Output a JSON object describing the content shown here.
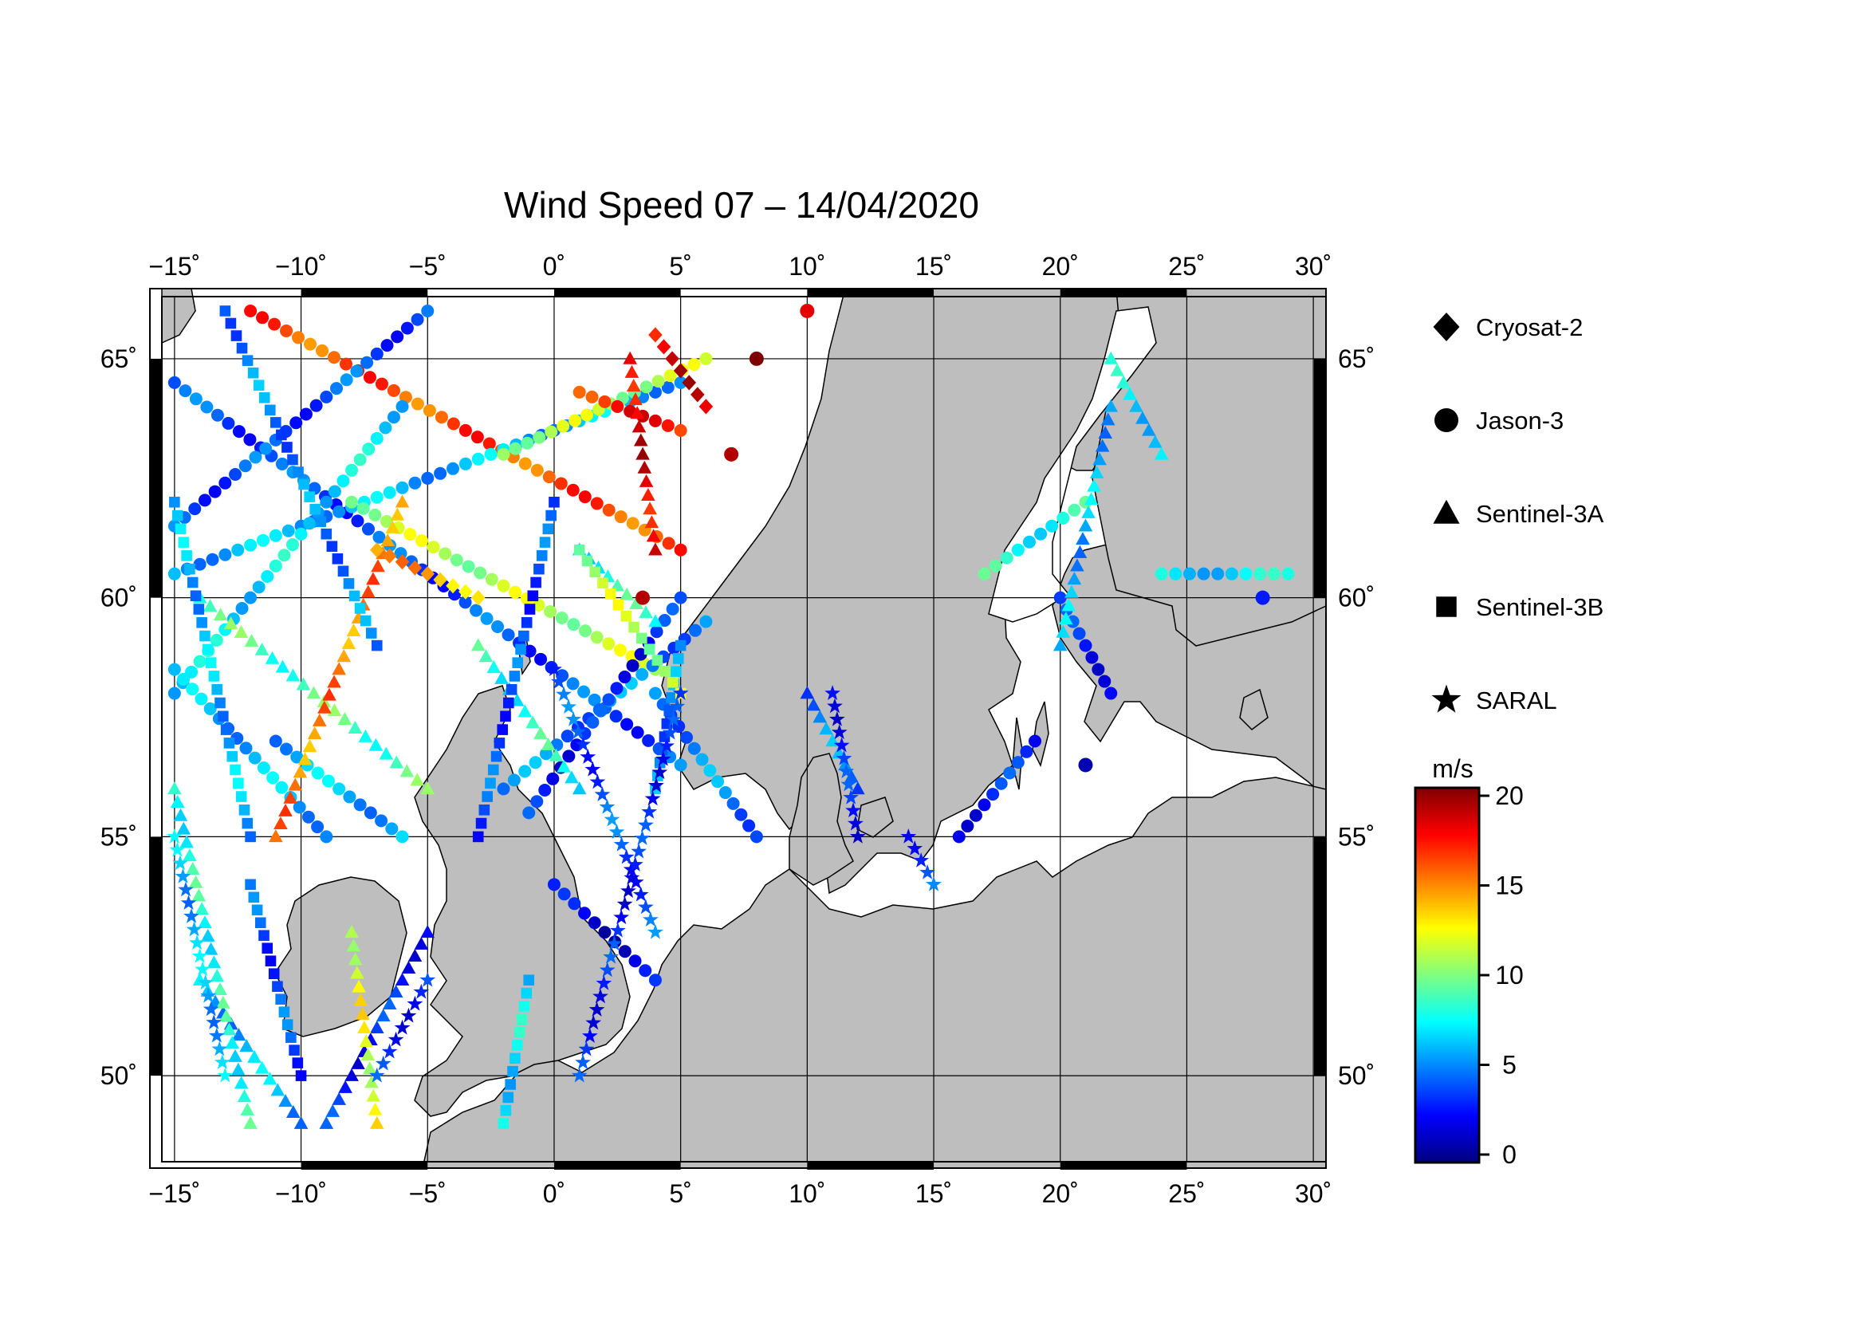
{
  "title": "Wind Speed 07 – 14/04/2020",
  "map": {
    "lon_range": [
      -15.5,
      30.5
    ],
    "lat_range": [
      48.2,
      66.3
    ],
    "lon_ticks": [
      {
        "value": -15,
        "label": "−15˚"
      },
      {
        "value": -10,
        "label": "−10˚"
      },
      {
        "value": -5,
        "label": "−5˚"
      },
      {
        "value": 0,
        "label": "0˚"
      },
      {
        "value": 5,
        "label": "5˚"
      },
      {
        "value": 10,
        "label": "10˚"
      },
      {
        "value": 15,
        "label": "15˚"
      },
      {
        "value": 20,
        "label": "20˚"
      },
      {
        "value": 25,
        "label": "25˚"
      },
      {
        "value": 30,
        "label": "30˚"
      }
    ],
    "lat_ticks": [
      {
        "value": 50,
        "label": "50˚"
      },
      {
        "value": 55,
        "label": "55˚"
      },
      {
        "value": 60,
        "label": "60˚"
      },
      {
        "value": 65,
        "label": "65˚"
      }
    ],
    "grid": true,
    "land_color": "#bebebe",
    "sea_color": "#ffffff"
  },
  "legend": {
    "items": [
      {
        "name": "Cryosat-2",
        "marker": "diamond"
      },
      {
        "name": "Jason-3",
        "marker": "circle"
      },
      {
        "name": "Sentinel-3A",
        "marker": "triangle"
      },
      {
        "name": "Sentinel-3B",
        "marker": "square"
      },
      {
        "name": "SARAL",
        "marker": "star"
      }
    ]
  },
  "colorbar": {
    "unit": "m/s",
    "min": 0,
    "max": 20,
    "ticks": [
      {
        "value": 0,
        "label": "0"
      },
      {
        "value": 5,
        "label": "5"
      },
      {
        "value": 10,
        "label": "10"
      },
      {
        "value": 15,
        "label": "15"
      },
      {
        "value": 20,
        "label": "20"
      }
    ],
    "colormap": [
      "#00007f",
      "#0000ff",
      "#007fff",
      "#00ffff",
      "#7fff7f",
      "#ffff00",
      "#ff7f00",
      "#ff0000",
      "#7f0000"
    ]
  },
  "chart_data": {
    "type": "scatter",
    "x_unit": "longitude (deg)",
    "y_unit": "latitude (deg)",
    "value_unit": "m/s",
    "tracks": [
      {
        "satellite": "Jason-3",
        "from": [
          -15,
          64.5
        ],
        "to": [
          5,
          56.5
        ],
        "v": 4
      },
      {
        "satellite": "Jason-3",
        "from": [
          -12,
          66
        ],
        "to": [
          5,
          61
        ],
        "v": 16
      },
      {
        "satellite": "Jason-3",
        "from": [
          -15,
          61.5
        ],
        "to": [
          -5,
          66
        ],
        "v": 4
      },
      {
        "satellite": "Jason-3",
        "from": [
          -15,
          60.5
        ],
        "to": [
          5,
          64.5
        ],
        "v": 6
      },
      {
        "satellite": "Jason-3",
        "from": [
          -8,
          62
        ],
        "to": [
          4,
          58.5
        ],
        "v": 11
      },
      {
        "satellite": "Jason-3",
        "from": [
          -15,
          58
        ],
        "to": [
          -6,
          64
        ],
        "v": 7
      },
      {
        "satellite": "Jason-3",
        "from": [
          -2,
          56
        ],
        "to": [
          6,
          59.5
        ],
        "v": 5
      },
      {
        "satellite": "Jason-3",
        "from": [
          0,
          54
        ],
        "to": [
          4,
          52
        ],
        "v": 2
      },
      {
        "satellite": "Jason-3",
        "from": [
          -1,
          55.5
        ],
        "to": [
          5,
          60
        ],
        "v": 3
      },
      {
        "satellite": "Jason-3",
        "from": [
          4,
          58
        ],
        "to": [
          8,
          55
        ],
        "v": 5
      },
      {
        "satellite": "Jason-3",
        "from": [
          -9,
          55
        ],
        "to": [
          -15,
          58.5
        ],
        "v": 6
      },
      {
        "satellite": "Jason-3",
        "from": [
          -11,
          57
        ],
        "to": [
          -6,
          55
        ],
        "v": 6
      },
      {
        "satellite": "Jason-3",
        "from": [
          19,
          57
        ],
        "to": [
          16,
          55
        ],
        "v": 3
      },
      {
        "satellite": "Jason-3",
        "from": [
          20,
          60
        ],
        "to": [
          22,
          58
        ],
        "v": 3
      },
      {
        "satellite": "Jason-3",
        "from": [
          17,
          60.5
        ],
        "to": [
          21,
          62
        ],
        "v": 8
      },
      {
        "satellite": "Jason-3",
        "from": [
          24,
          60.5
        ],
        "to": [
          29,
          60.5
        ],
        "v": 7
      },
      {
        "satellite": "Jason-3",
        "from": [
          -2,
          63
        ],
        "to": [
          6,
          65
        ],
        "v": 11
      },
      {
        "satellite": "Jason-3",
        "from": [
          1,
          64.3
        ],
        "to": [
          5,
          63.5
        ],
        "v": 17
      },
      {
        "satellite": "Sentinel-3A",
        "from": [
          -14,
          60
        ],
        "to": [
          -5,
          56
        ],
        "v": 9
      },
      {
        "satellite": "Sentinel-3A",
        "from": [
          -11,
          55
        ],
        "to": [
          -6,
          62
        ],
        "v": 15
      },
      {
        "satellite": "Sentinel-3A",
        "from": [
          -9,
          49
        ],
        "to": [
          -5,
          53
        ],
        "v": 3
      },
      {
        "satellite": "Sentinel-3A",
        "from": [
          -14,
          52
        ],
        "to": [
          -10,
          49
        ],
        "v": 6
      },
      {
        "satellite": "Sentinel-3A",
        "from": [
          3,
          65
        ],
        "to": [
          4,
          61
        ],
        "v": 18
      },
      {
        "satellite": "Sentinel-3A",
        "from": [
          1,
          61
        ],
        "to": [
          4,
          59.5
        ],
        "v": 8
      },
      {
        "satellite": "Sentinel-3A",
        "from": [
          12,
          56
        ],
        "to": [
          10,
          58
        ],
        "v": 5
      },
      {
        "satellite": "Sentinel-3A",
        "from": [
          20,
          59
        ],
        "to": [
          22,
          64
        ],
        "v": 6
      },
      {
        "satellite": "Sentinel-3A",
        "from": [
          22,
          65
        ],
        "to": [
          24,
          63
        ],
        "v": 7
      },
      {
        "satellite": "Sentinel-3A",
        "from": [
          -3,
          59
        ],
        "to": [
          1,
          56
        ],
        "v": 8
      },
      {
        "satellite": "Sentinel-3A",
        "from": [
          -15,
          56
        ],
        "to": [
          -12,
          49
        ],
        "v": 8
      },
      {
        "satellite": "Sentinel-3A",
        "from": [
          -8,
          53
        ],
        "to": [
          -7,
          49
        ],
        "v": 12
      },
      {
        "satellite": "Sentinel-3B",
        "from": [
          -3,
          55
        ],
        "to": [
          0,
          62
        ],
        "v": 4
      },
      {
        "satellite": "Sentinel-3B",
        "from": [
          -15,
          62
        ],
        "to": [
          -12,
          55
        ],
        "v": 6
      },
      {
        "satellite": "Sentinel-3B",
        "from": [
          -12,
          54
        ],
        "to": [
          -10,
          50
        ],
        "v": 4
      },
      {
        "satellite": "Sentinel-3B",
        "from": [
          4,
          56
        ],
        "to": [
          5,
          59
        ],
        "v": 5
      },
      {
        "satellite": "Sentinel-3B",
        "from": [
          -2,
          49
        ],
        "to": [
          -1,
          52
        ],
        "v": 7
      },
      {
        "satellite": "Sentinel-3B",
        "from": [
          -13,
          66
        ],
        "to": [
          -7,
          59
        ],
        "v": 5
      },
      {
        "satellite": "Sentinel-3B",
        "from": [
          1,
          61
        ],
        "to": [
          5,
          58
        ],
        "v": 11
      },
      {
        "satellite": "SARAL",
        "from": [
          0,
          58.5
        ],
        "to": [
          4,
          53
        ],
        "v": 4
      },
      {
        "satellite": "SARAL",
        "from": [
          5,
          58
        ],
        "to": [
          1,
          50
        ],
        "v": 3
      },
      {
        "satellite": "SARAL",
        "from": [
          -15,
          55
        ],
        "to": [
          -13,
          50
        ],
        "v": 6
      },
      {
        "satellite": "SARAL",
        "from": [
          -5,
          52
        ],
        "to": [
          -7,
          50
        ],
        "v": 3
      },
      {
        "satellite": "SARAL",
        "from": [
          11,
          58
        ],
        "to": [
          12,
          55
        ],
        "v": 3
      },
      {
        "satellite": "SARAL",
        "from": [
          14,
          55
        ],
        "to": [
          15,
          54
        ],
        "v": 4
      },
      {
        "satellite": "Cryosat-2",
        "from": [
          4,
          65.5
        ],
        "to": [
          6,
          64
        ],
        "v": 18
      },
      {
        "satellite": "Cryosat-2",
        "from": [
          -7,
          61
        ],
        "to": [
          -3,
          60
        ],
        "v": 14
      }
    ],
    "notable_points": [
      {
        "satellite": "Jason-3",
        "lon": 8,
        "lat": 65,
        "v": 20
      },
      {
        "satellite": "Jason-3",
        "lon": 7,
        "lat": 63,
        "v": 19
      },
      {
        "satellite": "Jason-3",
        "lon": 10,
        "lat": 66,
        "v": 18
      },
      {
        "satellite": "Jason-3",
        "lon": 3.5,
        "lat": 60,
        "v": 19
      },
      {
        "satellite": "Jason-3",
        "lon": 21,
        "lat": 56.5,
        "v": 1
      },
      {
        "satellite": "Jason-3",
        "lon": 28,
        "lat": 60,
        "v": 3
      }
    ]
  }
}
